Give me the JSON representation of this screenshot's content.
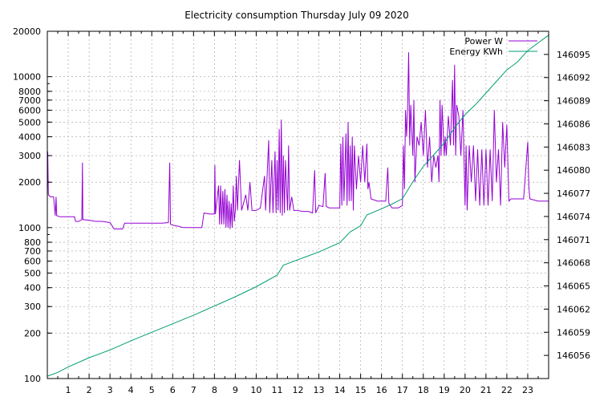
{
  "chart_data": {
    "type": "line",
    "title": "Electricity consumption Thursday July 09 2020",
    "xlabel": "",
    "ylabel": "",
    "x_range": [
      0,
      24
    ],
    "x_ticks": [
      "1",
      "2",
      "3",
      "4",
      "5",
      "6",
      "7",
      "8",
      "9",
      "10",
      "11",
      "12",
      "13",
      "14",
      "15",
      "16",
      "17",
      "18",
      "19",
      "20",
      "21",
      "22",
      "23"
    ],
    "y_scale": "log",
    "y_range": [
      100,
      20000
    ],
    "y_ticks": [
      "100",
      "200",
      "300",
      "400",
      "500",
      "600",
      "700",
      "800",
      "1000",
      "2000",
      "3000",
      "4000",
      "5000",
      "6000",
      "7000",
      "8000",
      "10000",
      "20000"
    ],
    "y2_range": [
      146053,
      146098
    ],
    "y2_ticks": [
      "146056",
      "146059",
      "146062",
      "146065",
      "146068",
      "146071",
      "146074",
      "146077",
      "146080",
      "146083",
      "146086",
      "146089",
      "146092",
      "146095"
    ],
    "grid": true,
    "legend_position": "top-right",
    "series": [
      {
        "name": "Power W",
        "color": "#9400d3",
        "axis": "y",
        "points": [
          [
            0.0,
            1650
          ],
          [
            0.02,
            3200
          ],
          [
            0.05,
            1650
          ],
          [
            0.15,
            1600
          ],
          [
            0.3,
            1600
          ],
          [
            0.38,
            1200
          ],
          [
            0.42,
            1600
          ],
          [
            0.45,
            1200
          ],
          [
            0.6,
            1180
          ],
          [
            0.9,
            1180
          ],
          [
            1.3,
            1180
          ],
          [
            1.35,
            1100
          ],
          [
            1.5,
            1100
          ],
          [
            1.65,
            1130
          ],
          [
            1.68,
            2700
          ],
          [
            1.7,
            1130
          ],
          [
            2.0,
            1120
          ],
          [
            2.3,
            1100
          ],
          [
            2.6,
            1100
          ],
          [
            2.8,
            1090
          ],
          [
            3.0,
            1080
          ],
          [
            3.2,
            980
          ],
          [
            3.6,
            980
          ],
          [
            3.7,
            1070
          ],
          [
            4.0,
            1070
          ],
          [
            4.5,
            1070
          ],
          [
            5.0,
            1070
          ],
          [
            5.5,
            1070
          ],
          [
            5.8,
            1080
          ],
          [
            5.86,
            2700
          ],
          [
            5.9,
            1050
          ],
          [
            6.1,
            1030
          ],
          [
            6.3,
            1020
          ],
          [
            6.5,
            1000
          ],
          [
            7.0,
            1000
          ],
          [
            7.4,
            1000
          ],
          [
            7.5,
            1250
          ],
          [
            7.8,
            1230
          ],
          [
            8.0,
            1230
          ],
          [
            8.02,
            2600
          ],
          [
            8.05,
            1230
          ],
          [
            8.2,
            1900
          ],
          [
            8.25,
            1050
          ],
          [
            8.3,
            1900
          ],
          [
            8.35,
            1050
          ],
          [
            8.4,
            1750
          ],
          [
            8.45,
            1050
          ],
          [
            8.5,
            1800
          ],
          [
            8.55,
            1000
          ],
          [
            8.6,
            1650
          ],
          [
            8.65,
            1000
          ],
          [
            8.7,
            1500
          ],
          [
            8.75,
            980
          ],
          [
            8.8,
            1450
          ],
          [
            8.85,
            1000
          ],
          [
            8.9,
            1900
          ],
          [
            8.95,
            1100
          ],
          [
            9.0,
            1300
          ],
          [
            9.05,
            2200
          ],
          [
            9.1,
            1300
          ],
          [
            9.2,
            2800
          ],
          [
            9.3,
            1300
          ],
          [
            9.5,
            1650
          ],
          [
            9.6,
            1300
          ],
          [
            9.7,
            2000
          ],
          [
            9.8,
            1300
          ],
          [
            10.0,
            1300
          ],
          [
            10.2,
            1350
          ],
          [
            10.4,
            2200
          ],
          [
            10.45,
            1300
          ],
          [
            10.6,
            3800
          ],
          [
            10.65,
            1250
          ],
          [
            10.75,
            2800
          ],
          [
            10.8,
            1250
          ],
          [
            10.9,
            3200
          ],
          [
            10.95,
            1250
          ],
          [
            11.0,
            2800
          ],
          [
            11.05,
            1300
          ],
          [
            11.1,
            4500
          ],
          [
            11.15,
            1250
          ],
          [
            11.2,
            5200
          ],
          [
            11.25,
            1200
          ],
          [
            11.3,
            3000
          ],
          [
            11.35,
            1250
          ],
          [
            11.4,
            2800
          ],
          [
            11.5,
            1300
          ],
          [
            11.55,
            3500
          ],
          [
            11.6,
            1300
          ],
          [
            11.7,
            1600
          ],
          [
            11.8,
            1300
          ],
          [
            12.0,
            1300
          ],
          [
            12.2,
            1280
          ],
          [
            12.5,
            1280
          ],
          [
            12.7,
            1250
          ],
          [
            12.8,
            2400
          ],
          [
            12.85,
            1250
          ],
          [
            13.0,
            1400
          ],
          [
            13.2,
            1380
          ],
          [
            13.3,
            2300
          ],
          [
            13.35,
            1380
          ],
          [
            13.5,
            1350
          ],
          [
            13.8,
            1350
          ],
          [
            14.0,
            1350
          ],
          [
            14.05,
            3600
          ],
          [
            14.1,
            1400
          ],
          [
            14.15,
            4000
          ],
          [
            14.2,
            1500
          ],
          [
            14.3,
            4200
          ],
          [
            14.35,
            1400
          ],
          [
            14.4,
            5000
          ],
          [
            14.45,
            1500
          ],
          [
            14.5,
            3500
          ],
          [
            14.55,
            1500
          ],
          [
            14.6,
            4000
          ],
          [
            14.65,
            1300
          ],
          [
            14.7,
            3500
          ],
          [
            14.8,
            1800
          ],
          [
            14.9,
            3000
          ],
          [
            15.0,
            2000
          ],
          [
            15.1,
            3500
          ],
          [
            15.2,
            2000
          ],
          [
            15.3,
            3600
          ],
          [
            15.35,
            1800
          ],
          [
            15.4,
            2000
          ],
          [
            15.5,
            1550
          ],
          [
            15.8,
            1500
          ],
          [
            16.0,
            1500
          ],
          [
            16.2,
            1500
          ],
          [
            16.3,
            2500
          ],
          [
            16.35,
            1450
          ],
          [
            16.5,
            1350
          ],
          [
            16.8,
            1350
          ],
          [
            17.0,
            1400
          ],
          [
            17.05,
            3500
          ],
          [
            17.1,
            1800
          ],
          [
            17.15,
            6000
          ],
          [
            17.2,
            4000
          ],
          [
            17.25,
            6200
          ],
          [
            17.3,
            14500
          ],
          [
            17.35,
            3500
          ],
          [
            17.4,
            6500
          ],
          [
            17.5,
            3000
          ],
          [
            17.55,
            7000
          ],
          [
            17.6,
            2000
          ],
          [
            17.7,
            4000
          ],
          [
            17.8,
            3500
          ],
          [
            17.9,
            5000
          ],
          [
            18.0,
            3000
          ],
          [
            18.1,
            6000
          ],
          [
            18.2,
            2500
          ],
          [
            18.3,
            4000
          ],
          [
            18.4,
            2000
          ],
          [
            18.5,
            3000
          ],
          [
            18.6,
            2500
          ],
          [
            18.7,
            3000
          ],
          [
            18.75,
            2000
          ],
          [
            18.8,
            7000
          ],
          [
            18.85,
            3000
          ],
          [
            18.9,
            6500
          ],
          [
            19.0,
            3000
          ],
          [
            19.05,
            4000
          ],
          [
            19.1,
            3000
          ],
          [
            19.2,
            5500
          ],
          [
            19.3,
            3500
          ],
          [
            19.4,
            9500
          ],
          [
            19.45,
            3500
          ],
          [
            19.5,
            12000
          ],
          [
            19.55,
            3000
          ],
          [
            19.6,
            6500
          ],
          [
            19.7,
            5500
          ],
          [
            19.8,
            3000
          ],
          [
            19.9,
            6000
          ],
          [
            20.0,
            1400
          ],
          [
            20.05,
            3500
          ],
          [
            20.1,
            1300
          ],
          [
            20.2,
            3500
          ],
          [
            20.3,
            2000
          ],
          [
            20.4,
            3500
          ],
          [
            20.5,
            1500
          ],
          [
            20.6,
            3300
          ],
          [
            20.7,
            1400
          ],
          [
            20.8,
            3300
          ],
          [
            20.9,
            1400
          ],
          [
            21.0,
            3300
          ],
          [
            21.1,
            1400
          ],
          [
            21.2,
            3300
          ],
          [
            21.3,
            1500
          ],
          [
            21.4,
            6000
          ],
          [
            21.5,
            2000
          ],
          [
            21.6,
            3300
          ],
          [
            21.7,
            1400
          ],
          [
            21.8,
            5000
          ],
          [
            21.9,
            2500
          ],
          [
            22.0,
            4800
          ],
          [
            22.1,
            1500
          ],
          [
            22.2,
            1550
          ],
          [
            22.5,
            1550
          ],
          [
            22.8,
            1550
          ],
          [
            23.0,
            3700
          ],
          [
            23.05,
            1900
          ],
          [
            23.1,
            1550
          ],
          [
            23.5,
            1500
          ],
          [
            24.0,
            1500
          ]
        ]
      },
      {
        "name": "Energy KWh",
        "color": "#009e73",
        "axis": "y2",
        "points": [
          [
            0.0,
            146053.3
          ],
          [
            0.5,
            146053.8
          ],
          [
            1.0,
            146054.5
          ],
          [
            2.0,
            146055.7
          ],
          [
            3.0,
            146056.7
          ],
          [
            4.0,
            146057.9
          ],
          [
            5.0,
            146059.0
          ],
          [
            6.0,
            146060.1
          ],
          [
            7.0,
            146061.2
          ],
          [
            8.0,
            146062.4
          ],
          [
            9.0,
            146063.6
          ],
          [
            10.0,
            146064.9
          ],
          [
            11.0,
            146066.4
          ],
          [
            11.3,
            146067.7
          ],
          [
            12.0,
            146068.4
          ],
          [
            13.0,
            146069.4
          ],
          [
            14.0,
            146070.6
          ],
          [
            14.5,
            146072.0
          ],
          [
            15.0,
            146072.8
          ],
          [
            15.3,
            146074.2
          ],
          [
            16.0,
            146075.0
          ],
          [
            16.5,
            146075.6
          ],
          [
            17.0,
            146076.3
          ],
          [
            17.5,
            146078.5
          ],
          [
            18.0,
            146080.5
          ],
          [
            18.5,
            146082.0
          ],
          [
            19.0,
            146083.5
          ],
          [
            19.5,
            146085.5
          ],
          [
            20.0,
            146087.2
          ],
          [
            20.5,
            146088.5
          ],
          [
            21.0,
            146090.0
          ],
          [
            21.5,
            146091.5
          ],
          [
            22.0,
            146093.0
          ],
          [
            22.5,
            146094.0
          ],
          [
            23.0,
            146095.5
          ],
          [
            23.5,
            146096.5
          ],
          [
            24.0,
            146097.5
          ]
        ]
      }
    ]
  }
}
